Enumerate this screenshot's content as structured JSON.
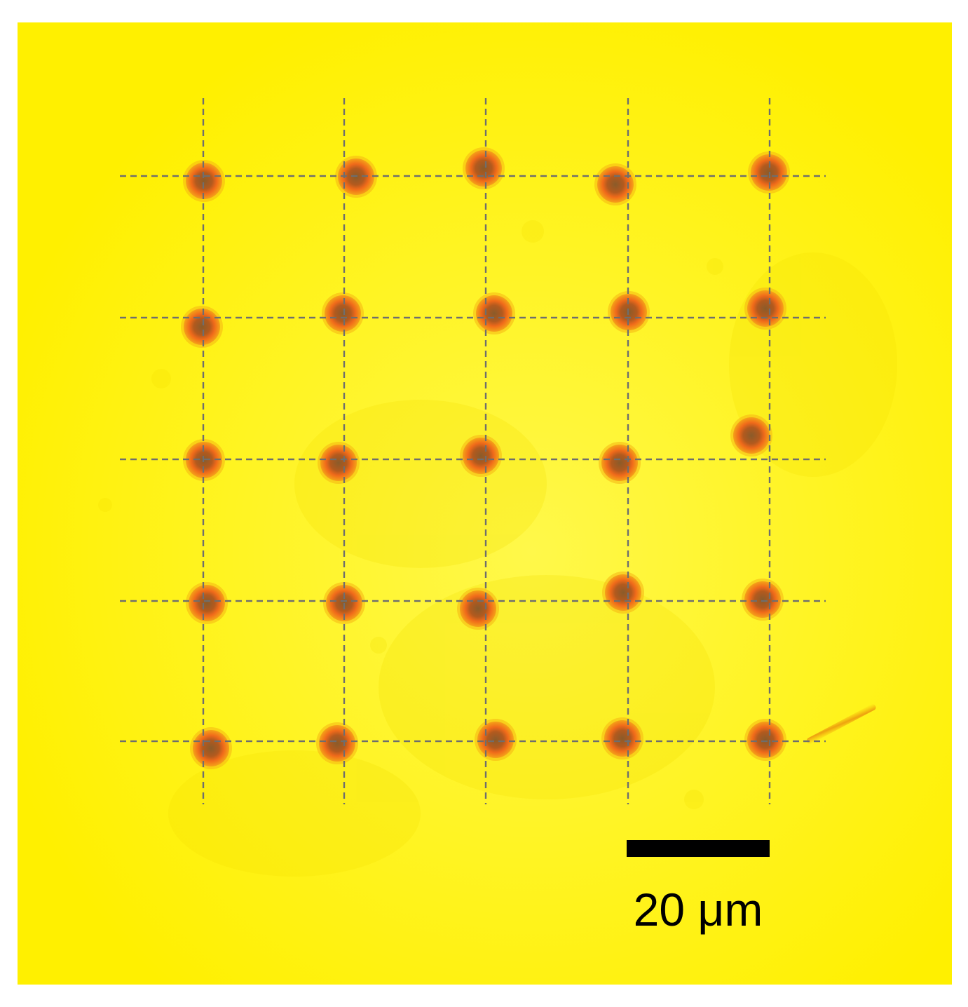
{
  "image": {
    "description_hidden": false,
    "background_color": "#FFF200",
    "grid_line_color": "#6E6E6E",
    "dot_outer_color": "#F06A1A",
    "dot_inner_color": "#A65A2A"
  },
  "grid": {
    "rows": 5,
    "columns": 5,
    "dots_visible": 25
  },
  "scalebar": {
    "label": "20 μm"
  }
}
